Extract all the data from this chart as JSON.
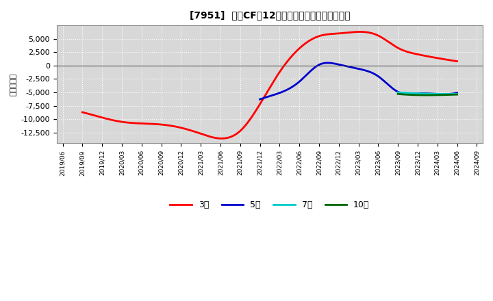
{
  "title": "[7951]  投資CFの12か月移動合計の平均値の推移",
  "ylabel": "（百万円）",
  "background_color": "#ffffff",
  "plot_bg_color": "#d8d8d8",
  "grid_color": "#ffffff",
  "ylim": [
    -14500,
    7500
  ],
  "yticks": [
    -12500,
    -10000,
    -7500,
    -5000,
    -2500,
    0,
    2500,
    5000
  ],
  "series": {
    "3年": {
      "color": "#ff0000",
      "linewidth": 2.0,
      "data": [
        [
          "2019/06",
          null
        ],
        [
          "2019/09",
          -8700
        ],
        [
          "2019/12",
          -9700
        ],
        [
          "2020/03",
          -10500
        ],
        [
          "2020/06",
          -10800
        ],
        [
          "2020/09",
          -11000
        ],
        [
          "2020/12",
          -11600
        ],
        [
          "2021/03",
          -12700
        ],
        [
          "2021/06",
          -13600
        ],
        [
          "2021/09",
          -12200
        ],
        [
          "2021/12",
          -7200
        ],
        [
          "2022/03",
          -1200
        ],
        [
          "2022/06",
          3200
        ],
        [
          "2022/09",
          5500
        ],
        [
          "2022/12",
          6000
        ],
        [
          "2023/03",
          6300
        ],
        [
          "2023/06",
          5600
        ],
        [
          "2023/09",
          3300
        ],
        [
          "2023/12",
          2100
        ],
        [
          "2024/03",
          1400
        ],
        [
          "2024/06",
          800
        ],
        [
          "2024/09",
          null
        ]
      ]
    },
    "5年": {
      "color": "#0000cc",
      "linewidth": 2.0,
      "data": [
        [
          "2019/06",
          null
        ],
        [
          "2019/09",
          null
        ],
        [
          "2019/12",
          null
        ],
        [
          "2020/03",
          null
        ],
        [
          "2020/06",
          null
        ],
        [
          "2020/09",
          null
        ],
        [
          "2020/12",
          null
        ],
        [
          "2021/03",
          null
        ],
        [
          "2021/06",
          null
        ],
        [
          "2021/09",
          null
        ],
        [
          "2021/12",
          -6300
        ],
        [
          "2022/03",
          -5100
        ],
        [
          "2022/06",
          -3000
        ],
        [
          "2022/09",
          150
        ],
        [
          "2022/12",
          200
        ],
        [
          "2023/03",
          -600
        ],
        [
          "2023/06",
          -2000
        ],
        [
          "2023/09",
          -4900
        ],
        [
          "2023/12",
          -5200
        ],
        [
          "2024/03",
          -5300
        ],
        [
          "2024/06",
          -5100
        ],
        [
          "2024/09",
          null
        ]
      ]
    },
    "7年": {
      "color": "#00cccc",
      "linewidth": 2.0,
      "data": [
        [
          "2019/06",
          null
        ],
        [
          "2019/09",
          null
        ],
        [
          "2019/12",
          null
        ],
        [
          "2020/03",
          null
        ],
        [
          "2020/06",
          null
        ],
        [
          "2020/09",
          null
        ],
        [
          "2020/12",
          null
        ],
        [
          "2021/03",
          null
        ],
        [
          "2021/06",
          null
        ],
        [
          "2021/09",
          null
        ],
        [
          "2021/12",
          null
        ],
        [
          "2022/03",
          null
        ],
        [
          "2022/06",
          null
        ],
        [
          "2022/09",
          null
        ],
        [
          "2022/12",
          null
        ],
        [
          "2023/03",
          null
        ],
        [
          "2023/06",
          null
        ],
        [
          "2023/09",
          -5000
        ],
        [
          "2023/12",
          -5200
        ],
        [
          "2024/03",
          -5300
        ],
        [
          "2024/06",
          -5300
        ],
        [
          "2024/09",
          null
        ]
      ]
    },
    "10年": {
      "color": "#006600",
      "linewidth": 2.0,
      "data": [
        [
          "2019/06",
          null
        ],
        [
          "2019/09",
          null
        ],
        [
          "2019/12",
          null
        ],
        [
          "2020/03",
          null
        ],
        [
          "2020/06",
          null
        ],
        [
          "2020/09",
          null
        ],
        [
          "2020/12",
          null
        ],
        [
          "2021/03",
          null
        ],
        [
          "2021/06",
          null
        ],
        [
          "2021/09",
          null
        ],
        [
          "2021/12",
          null
        ],
        [
          "2022/03",
          null
        ],
        [
          "2022/06",
          null
        ],
        [
          "2022/09",
          null
        ],
        [
          "2022/12",
          null
        ],
        [
          "2023/03",
          null
        ],
        [
          "2023/06",
          null
        ],
        [
          "2023/09",
          -5300
        ],
        [
          "2023/12",
          -5500
        ],
        [
          "2024/03",
          -5500
        ],
        [
          "2024/06",
          -5400
        ],
        [
          "2024/09",
          null
        ]
      ]
    }
  },
  "x_labels": [
    "2019/06",
    "2019/09",
    "2019/12",
    "2020/03",
    "2020/06",
    "2020/09",
    "2020/12",
    "2021/03",
    "2021/06",
    "2021/09",
    "2021/12",
    "2022/03",
    "2022/06",
    "2022/09",
    "2022/12",
    "2023/03",
    "2023/06",
    "2023/09",
    "2023/12",
    "2024/03",
    "2024/06",
    "2024/09"
  ]
}
